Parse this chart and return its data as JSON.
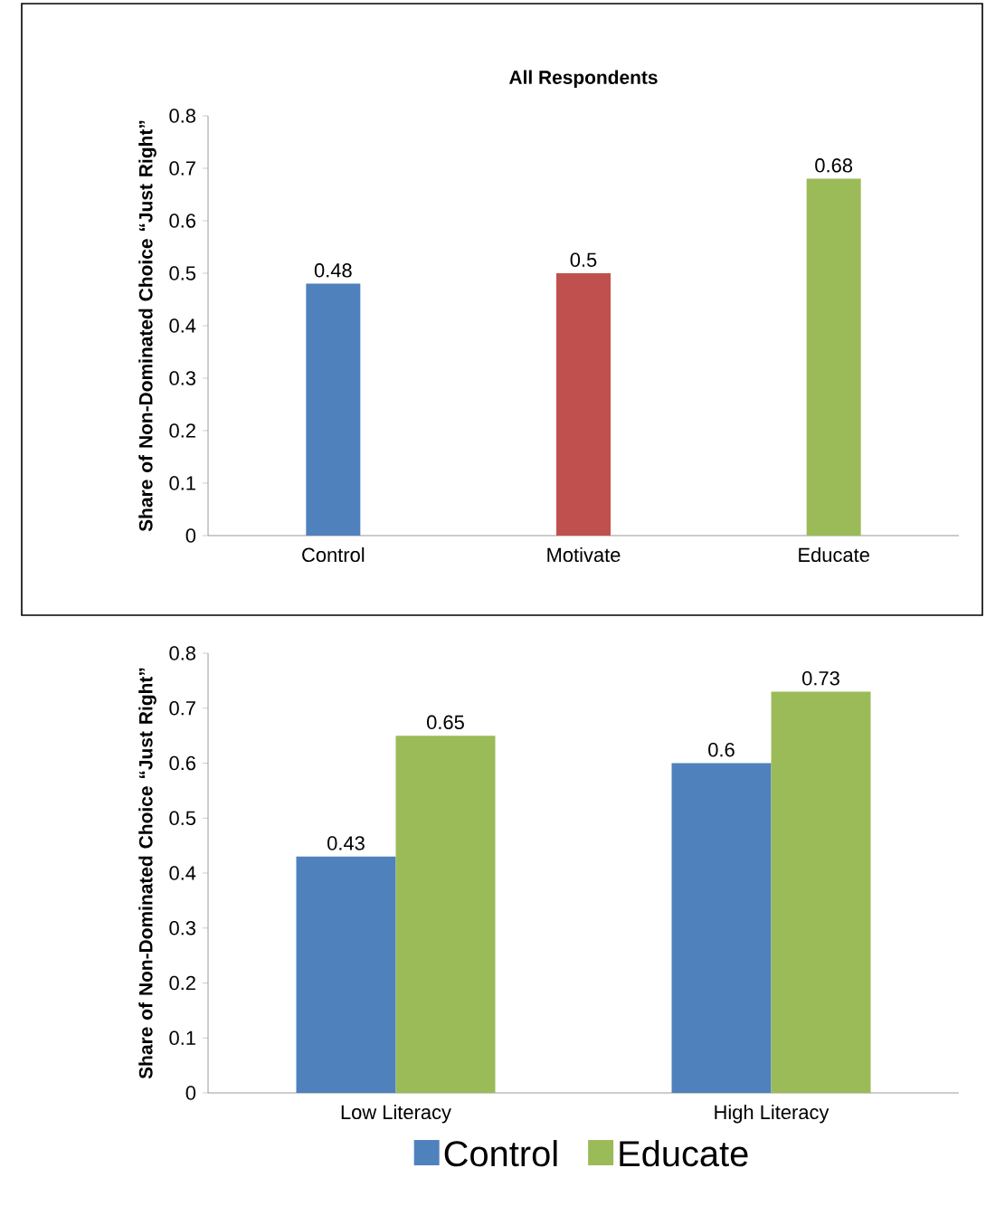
{
  "chart_data": [
    {
      "type": "bar",
      "title": "All Respondents",
      "ylabel": "Share of Non-Dominated Choice “Just Right”",
      "categories": [
        "Control",
        "Motivate",
        "Educate"
      ],
      "values": [
        0.48,
        0.5,
        0.68
      ],
      "colors": [
        "#4f81bd",
        "#c0504d",
        "#9bbb59"
      ],
      "data_labels": true,
      "ylim": [
        0,
        0.8
      ],
      "yticks": [
        0,
        0.1,
        0.2,
        0.3,
        0.4,
        0.5,
        0.6,
        0.7,
        0.8
      ]
    },
    {
      "type": "bar",
      "ylabel": "Share of Non-Dominated Choice “Just Right”",
      "categories": [
        "Low Literacy",
        "High Literacy"
      ],
      "series": [
        {
          "name": "Control",
          "color": "#4f81bd",
          "values": [
            0.43,
            0.6
          ]
        },
        {
          "name": "Educate",
          "color": "#9bbb59",
          "values": [
            0.65,
            0.73
          ]
        }
      ],
      "data_labels": true,
      "legend": "bottom",
      "ylim": [
        0,
        0.8
      ],
      "yticks": [
        0,
        0.1,
        0.2,
        0.3,
        0.4,
        0.5,
        0.6,
        0.7,
        0.8
      ]
    }
  ]
}
